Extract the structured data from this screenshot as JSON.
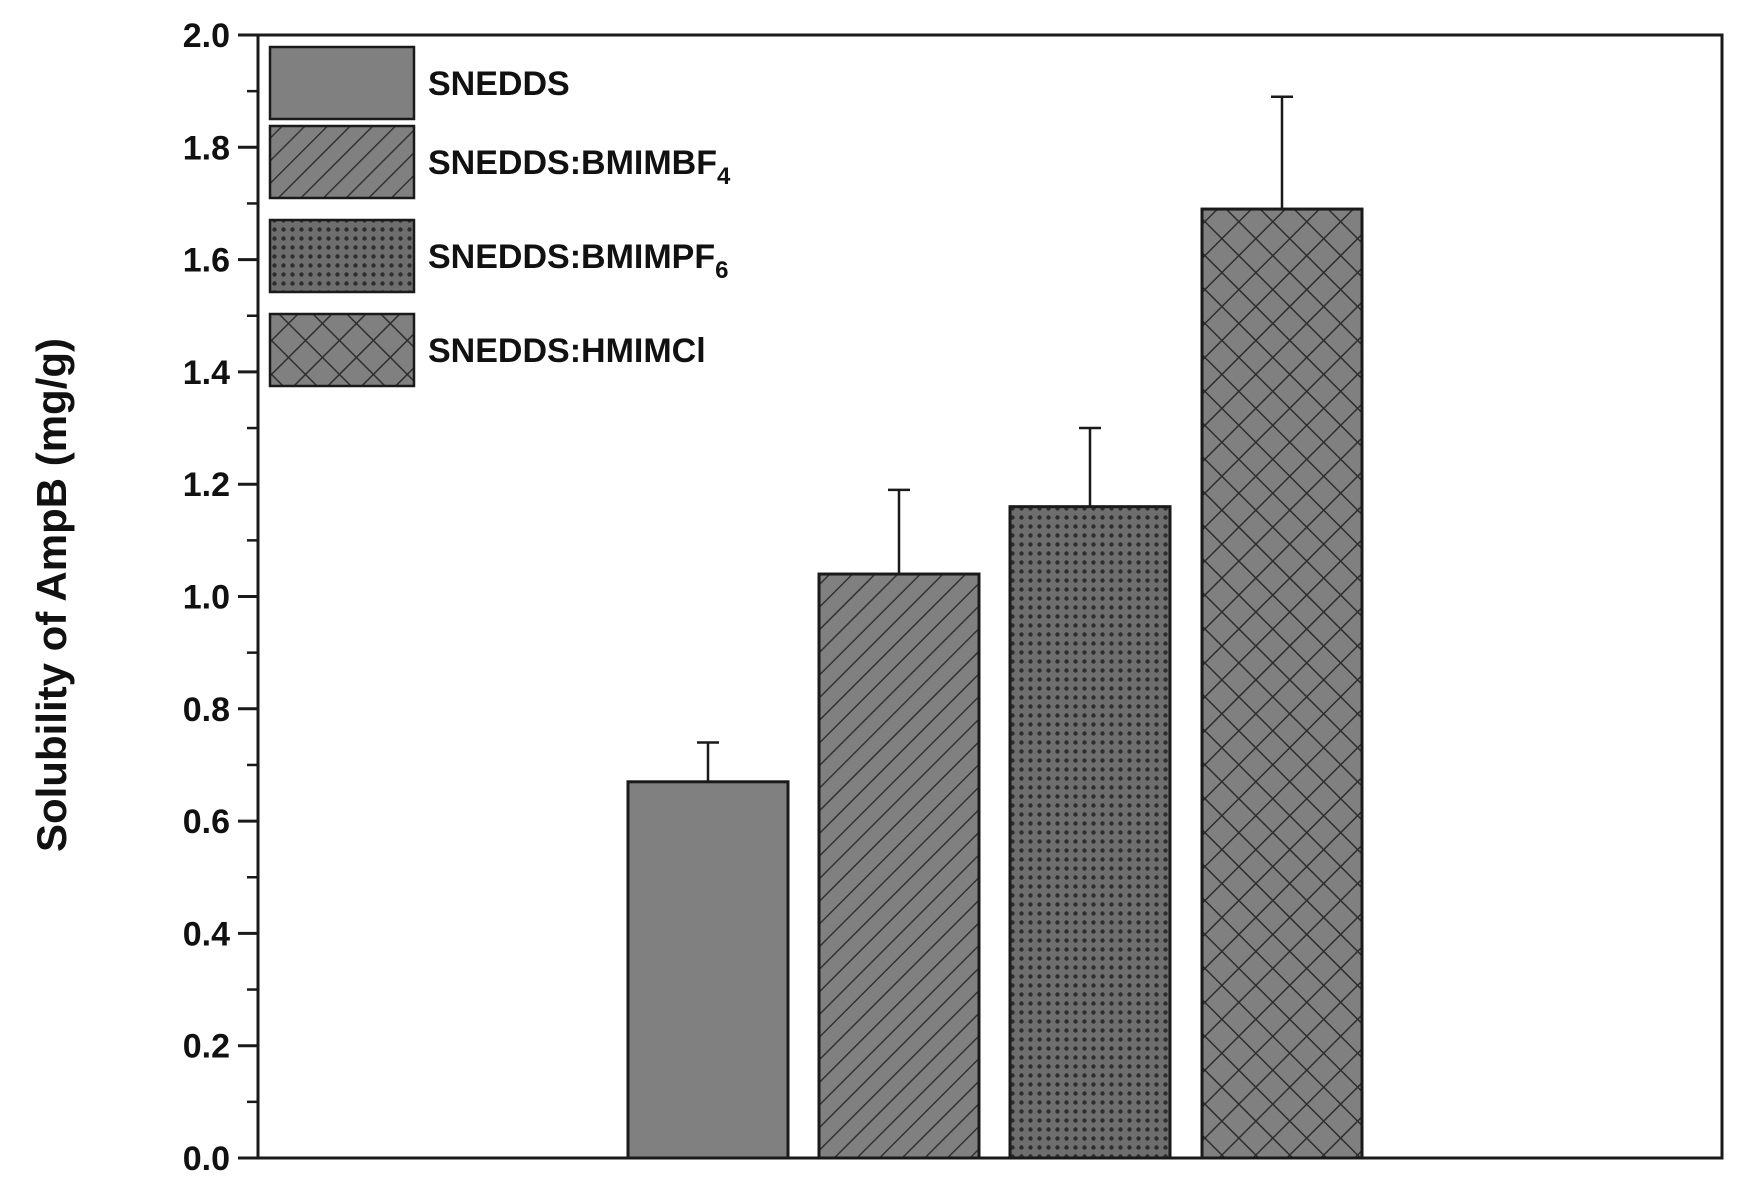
{
  "chart_data": {
    "type": "bar",
    "categories": [
      "SNEDDS",
      "SNEDDS:BMIMBF4",
      "SNEDDS:BMIMPF6",
      "SNEDDS:HMIMCl"
    ],
    "series": [
      {
        "values": [
          0.67,
          1.04,
          1.16,
          1.69
        ],
        "errors": [
          0.07,
          0.15,
          0.14,
          0.2
        ]
      }
    ],
    "ylabel": "Solubility of AmpB (mg/g)",
    "xlabel": "",
    "ylim": [
      0.0,
      2.0
    ],
    "yticks": [
      "0.0",
      "0.2",
      "0.4",
      "0.6",
      "0.8",
      "1.0",
      "1.2",
      "1.4",
      "1.6",
      "1.8",
      "2.0"
    ],
    "legend": {
      "placement": "top-left",
      "entries": [
        {
          "base": "SNEDDS",
          "sub": "",
          "pattern": "solid"
        },
        {
          "base": "SNEDDS:BMIMBF",
          "sub": "4",
          "pattern": "diagonal"
        },
        {
          "base": "SNEDDS:BMIMPF",
          "sub": "6",
          "pattern": "dots"
        },
        {
          "base": "SNEDDS:HMIMCl",
          "sub": "",
          "pattern": "crosshatch"
        }
      ]
    },
    "grid": false,
    "colors": {
      "bar_fill": "#808080",
      "stroke": "#1a1a1a",
      "pattern_line": "#333333"
    }
  }
}
